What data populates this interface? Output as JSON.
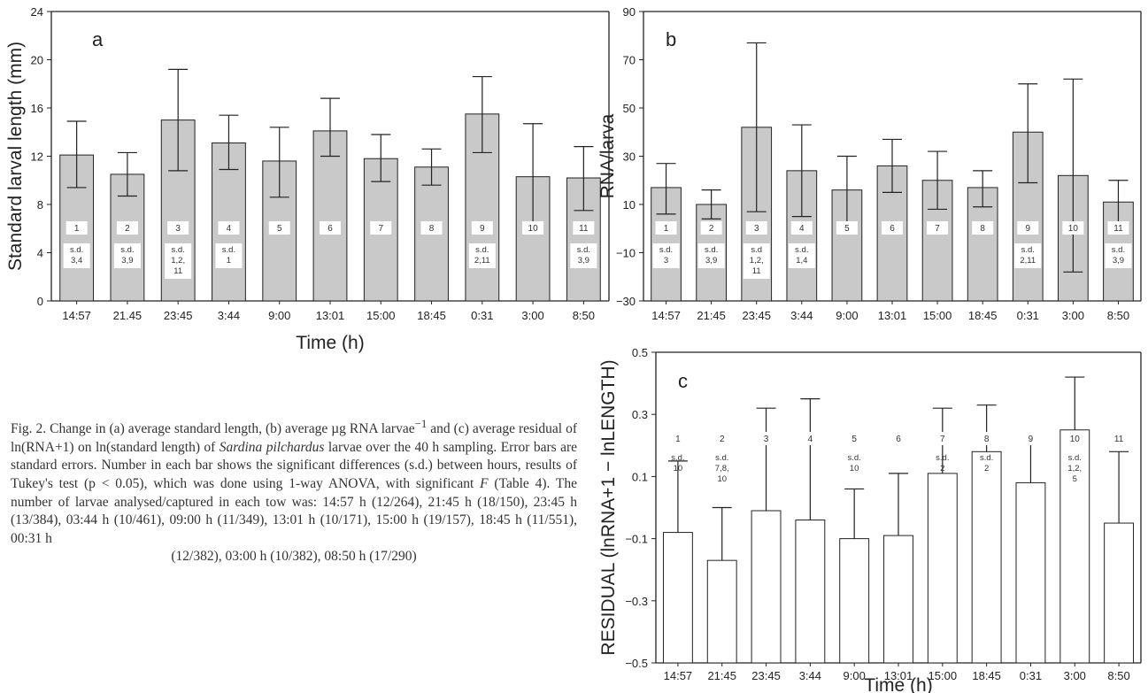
{
  "caption": {
    "part1": "Fig. 2. Change in (a) average standard length, (b) average µg RNA larvae",
    "sup1": "−1",
    "part2": " and (c) average residual of ln(RNA+1) on ln(standard length) of ",
    "species": "Sardina pilchardus",
    "part3": " larvae over the 40 h sampling. Error bars are standard errors. Number in each bar shows the significant differences (s.d.) between hours, results of Tukey's test (p < 0.05), which was done using 1-way ANOVA, with significant ",
    "f_letter": "F",
    "part4": " (Table 4). The number of larvae analysed/captured in each tow was: 14:57 h (12/264), 21:45 h (18/150), 23:45 h (13/384), 03:44 h (10/461), 09:00 h (11/349), 13:01 h (10/171), 15:00 h (19/157), 18:45 h (11/551), 00:31 h",
    "part5": "(12/382), 03:00 h (10/382), 08:50 h (17/290)"
  },
  "chart_data": [
    {
      "panel": "a",
      "type": "bar",
      "fill": "#c9c9c9",
      "categories": [
        "14:57",
        "21.45",
        "23:45",
        "3:44",
        "9:00",
        "13:01",
        "15:00",
        "18:45",
        "0:31",
        "3:00",
        "8:50"
      ],
      "values": [
        12.1,
        10.5,
        15.0,
        13.1,
        11.6,
        14.1,
        11.8,
        11.1,
        15.5,
        10.3,
        10.2
      ],
      "error_upper": [
        14.9,
        12.3,
        19.2,
        15.4,
        14.4,
        16.8,
        13.8,
        12.6,
        18.6,
        14.7,
        12.8
      ],
      "error_lower": [
        9.4,
        8.7,
        10.8,
        10.9,
        8.6,
        12.0,
        9.9,
        9.6,
        12.3,
        5.9,
        7.5
      ],
      "bar_numbers": [
        "1",
        "2",
        "3",
        "4",
        "5",
        "6",
        "7",
        "8",
        "9",
        "10",
        "11"
      ],
      "sd_labels": [
        [
          "s.d.",
          "3,4"
        ],
        [
          "s.d.",
          "3,9"
        ],
        [
          "s.d.",
          "1,2,",
          "11"
        ],
        [
          "s.d.",
          "1"
        ],
        [],
        [],
        [],
        [],
        [
          "s.d.",
          "2,11"
        ],
        [],
        [
          "s.d.",
          "3,9"
        ]
      ],
      "xlabel": "Time (h)",
      "ylabel": "Standard larval length (mm)",
      "ylim": [
        0,
        24
      ],
      "yticks": [
        0,
        4,
        8,
        12,
        16,
        20,
        24
      ]
    },
    {
      "panel": "b",
      "type": "bar",
      "fill": "#c9c9c9",
      "categories": [
        "14:57",
        "21:45",
        "23:45",
        "3:44",
        "9:00",
        "13:01",
        "15:00",
        "18:45",
        "0:31",
        "3:00",
        "8:50"
      ],
      "values": [
        17,
        10,
        42,
        24,
        16,
        26,
        20,
        17,
        40,
        22,
        11
      ],
      "error_upper": [
        27,
        16,
        77,
        43,
        30,
        37,
        32,
        24,
        60,
        62,
        20
      ],
      "error_lower": [
        6,
        4,
        7,
        5,
        2,
        15,
        8,
        9,
        19,
        -18,
        2
      ],
      "bar_numbers": [
        "1",
        "2",
        "3",
        "4",
        "5",
        "6",
        "7",
        "8",
        "9",
        "10",
        "11"
      ],
      "sd_labels": [
        [
          "s.d.",
          "3"
        ],
        [
          "s.d.",
          "3,9"
        ],
        [
          "s.d",
          "1,2,",
          "11"
        ],
        [
          "s.d.",
          "1,4"
        ],
        [],
        [],
        [],
        [],
        [
          "s.d.",
          "2,11"
        ],
        [],
        [
          "s.d.",
          "3,9"
        ]
      ],
      "xlabel": "",
      "ylabel": "RNA/larva",
      "ylim": [
        -30,
        90
      ],
      "yticks": [
        -30,
        -10,
        10,
        30,
        50,
        70,
        90
      ]
    },
    {
      "panel": "c",
      "type": "bar",
      "fill": "#ffffff",
      "categories": [
        "14:57",
        "21:45",
        "23:45",
        "3:44",
        "9:00",
        "13:01",
        "15:00",
        "18:45",
        "0:31",
        "3:00",
        "8:50"
      ],
      "values": [
        -0.08,
        -0.17,
        -0.01,
        -0.04,
        -0.1,
        -0.09,
        0.11,
        0.18,
        0.08,
        0.25,
        -0.05
      ],
      "error_upper": [
        0.15,
        0.0,
        0.32,
        0.35,
        0.06,
        0.11,
        0.32,
        0.33,
        0.21,
        0.42,
        0.18
      ],
      "bar_numbers": [
        "1",
        "2",
        "3",
        "4",
        "5",
        "6",
        "7",
        "8",
        "9",
        "10",
        "11"
      ],
      "sd_labels": [
        [
          "s.d.",
          "10"
        ],
        [
          "s.d.",
          "7,8,",
          "10"
        ],
        [],
        [],
        [
          "s.d.",
          "10"
        ],
        [],
        [
          "s.d.",
          "2"
        ],
        [
          "s.d.",
          "2"
        ],
        [],
        [
          "s.d.",
          "1,2,",
          "5"
        ],
        []
      ],
      "xlabel": "Time (h)",
      "ylabel": "RESIDUAL (lnRNA+1 − lnLENGTH)",
      "ylim": [
        -0.5,
        0.5
      ],
      "yticks": [
        -0.5,
        -0.3,
        -0.1,
        0.1,
        0.3,
        0.5
      ],
      "ytick_labels": [
        "−0.5",
        "−0.3",
        "−0.1",
        "0.1",
        "0.3",
        "0.5"
      ]
    }
  ]
}
